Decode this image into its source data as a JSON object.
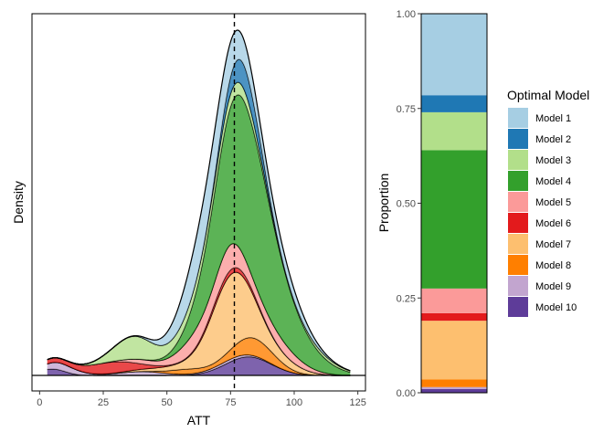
{
  "chart_data": [
    {
      "type": "area",
      "subtype": "stacked-density",
      "xlabel": "ATT",
      "ylabel": "Density",
      "xlim": [
        -3,
        128
      ],
      "xticks": [
        0,
        25,
        50,
        75,
        100,
        125
      ],
      "ref_line_x": 76.5,
      "series": [
        {
          "name": "Model 10",
          "color": "#5e3c99",
          "components": [
            [
              5,
              5,
              0.2
            ],
            [
              82,
              9,
              0.58
            ]
          ]
        },
        {
          "name": "Model 9",
          "color": "#c2a5cf",
          "components": [
            [
              8,
              7,
              0.22
            ],
            [
              40,
              9,
              0.12
            ],
            [
              75,
              9,
              0.08
            ]
          ]
        },
        {
          "name": "Model 8",
          "color": "#ff7f00",
          "components": [
            [
              58,
              7,
              0.15
            ],
            [
              84,
              8,
              0.55
            ]
          ]
        },
        {
          "name": "Model 7",
          "color": "#fdbf6f",
          "components": [
            [
              52,
              11,
              0.12
            ],
            [
              75,
              8,
              2.3
            ],
            [
              95,
              8,
              0.25
            ]
          ]
        },
        {
          "name": "Model 6",
          "color": "#e31a1c",
          "components": [
            [
              3,
              7,
              0.12
            ],
            [
              28,
              10,
              0.35
            ],
            [
              75,
              9,
              0.15
            ]
          ]
        },
        {
          "name": "Model 5",
          "color": "#fb9a99",
          "components": [
            [
              40,
              6,
              0.12
            ],
            [
              62,
              8,
              0.55
            ],
            [
              75,
              5,
              0.55
            ],
            [
              92,
              10,
              0.38
            ]
          ]
        },
        {
          "name": "Model 4",
          "color": "#33a02c",
          "components": [
            [
              80,
              11,
              4.7
            ],
            [
              100,
              11,
              0.7
            ]
          ]
        },
        {
          "name": "Model 3",
          "color": "#b2df8a",
          "components": [
            [
              37,
              8,
              0.7
            ],
            [
              60,
              9,
              0.3
            ],
            [
              78,
              8,
              0.35
            ],
            [
              110,
              9,
              0.1
            ]
          ]
        },
        {
          "name": "Model 2",
          "color": "#1f78b4",
          "components": [
            [
              80,
              6,
              0.75
            ]
          ]
        },
        {
          "name": "Model 1",
          "color": "#a6cee3",
          "components": [
            [
              65,
              9,
              1.4
            ],
            [
              79,
              7,
              0.35
            ],
            [
              95,
              9,
              0.4
            ]
          ]
        }
      ]
    },
    {
      "type": "bar",
      "subtype": "stacked",
      "ylabel": "Proportion",
      "ylim": [
        0,
        1
      ],
      "yticks": [
        "0.00",
        "0.25",
        "0.50",
        "0.75",
        "1.00"
      ],
      "series": [
        {
          "name": "Model 1",
          "color": "#a6cee3",
          "value": 0.215
        },
        {
          "name": "Model 2",
          "color": "#1f78b4",
          "value": 0.045
        },
        {
          "name": "Model 3",
          "color": "#b2df8a",
          "value": 0.1
        },
        {
          "name": "Model 4",
          "color": "#33a02c",
          "value": 0.365
        },
        {
          "name": "Model 5",
          "color": "#fb9a99",
          "value": 0.065
        },
        {
          "name": "Model 6",
          "color": "#e31a1c",
          "value": 0.02
        },
        {
          "name": "Model 7",
          "color": "#fdbf6f",
          "value": 0.155
        },
        {
          "name": "Model 8",
          "color": "#ff7f00",
          "value": 0.02
        },
        {
          "name": "Model 9",
          "color": "#c2a5cf",
          "value": 0.005
        },
        {
          "name": "Model 10",
          "color": "#5e3c99",
          "value": 0.01
        }
      ]
    }
  ],
  "legend": {
    "title": "Optimal Model",
    "items": [
      "Model 1",
      "Model 2",
      "Model 3",
      "Model 4",
      "Model 5",
      "Model 6",
      "Model 7",
      "Model 8",
      "Model 9",
      "Model 10"
    ],
    "placement": "right"
  }
}
